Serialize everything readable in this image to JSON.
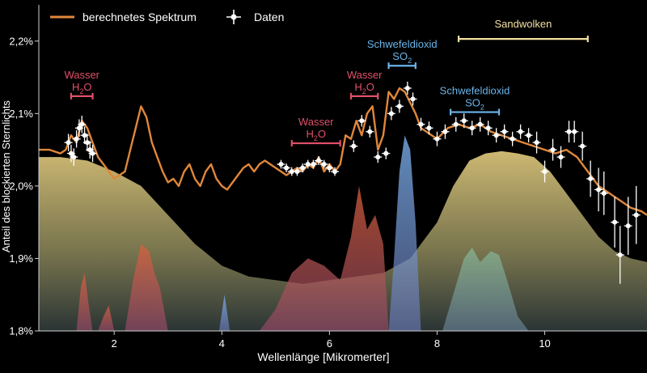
{
  "chart_data": {
    "type": "line",
    "xlabel": "Wellenlänge [Mikromerter]",
    "ylabel": "Anteil des blockierten Sternlichts",
    "xlim": [
      0.6,
      11.9
    ],
    "ylim": [
      1.8,
      2.25
    ],
    "x_ticks": [
      2,
      4,
      6,
      8,
      10
    ],
    "y_ticks": [
      {
        "value": 1.8,
        "label": "1,8%"
      },
      {
        "value": 1.9,
        "label": "1,9%"
      },
      {
        "value": 2.0,
        "label": "2,0%"
      },
      {
        "value": 2.1,
        "label": "2,1%"
      },
      {
        "value": 2.2,
        "label": "2,2%"
      }
    ],
    "legend": {
      "position": "top-left",
      "entries": [
        {
          "label": "berechnetes Spektrum",
          "kind": "line",
          "color": "#e0873a"
        },
        {
          "label": "Daten",
          "kind": "marker",
          "color": "#ffffff"
        }
      ]
    },
    "colors": {
      "model_line": "#e0873a",
      "data_points": "#ffffff",
      "water": "#e0506a",
      "so2": "#6ab4ea",
      "sand": "#f2e0a0",
      "cloud_fill": "#cbb66c",
      "water_fill": "#d2603e",
      "so2_fill": "#6c9ad8",
      "sand_fill": "#7aaa8e"
    },
    "annotations": [
      {
        "id": "water1",
        "label": "Wasser",
        "formula": "H",
        "sub": "2",
        "tail": "O",
        "x_range": [
          1.2,
          1.6
        ],
        "y": 2.124,
        "color": "#e0506a"
      },
      {
        "id": "water2",
        "label": "Wasser",
        "formula": "H",
        "sub": "2",
        "tail": "O",
        "x_range": [
          5.3,
          6.2
        ],
        "y": 2.059,
        "color": "#e0506a"
      },
      {
        "id": "water3",
        "label": "Wasser",
        "formula": "H",
        "sub": "2",
        "tail": "O",
        "x_range": [
          6.4,
          6.9
        ],
        "y": 2.124,
        "color": "#e0506a"
      },
      {
        "id": "so2a",
        "label": "Schwefeldioxid",
        "formula": "SO",
        "sub": "2",
        "tail": "",
        "x_range": [
          7.1,
          7.6
        ],
        "y": 2.166,
        "color": "#6ab4ea"
      },
      {
        "id": "so2b",
        "label": "Schwefeldioxid",
        "formula": "SO",
        "sub": "2",
        "tail": "",
        "x_range": [
          8.25,
          9.15
        ],
        "y": 2.102,
        "color": "#6ab4ea"
      },
      {
        "id": "sand",
        "label": "Sandwolken",
        "formula": "",
        "sub": "",
        "tail": "",
        "x_range": [
          8.4,
          10.8
        ],
        "y": 2.203,
        "color": "#f2e0a0"
      }
    ],
    "model_spectrum": {
      "name": "berechnetes Spektrum",
      "x": [
        0.6,
        0.8,
        1.0,
        1.1,
        1.2,
        1.3,
        1.4,
        1.5,
        1.6,
        1.7,
        1.8,
        1.9,
        2.0,
        2.1,
        2.2,
        2.3,
        2.4,
        2.5,
        2.6,
        2.7,
        2.8,
        2.9,
        3.0,
        3.1,
        3.2,
        3.3,
        3.4,
        3.5,
        3.6,
        3.7,
        3.8,
        3.9,
        4.0,
        4.1,
        4.2,
        4.3,
        4.4,
        4.5,
        4.6,
        4.7,
        4.8,
        4.9,
        5.0,
        5.1,
        5.2,
        5.3,
        5.4,
        5.5,
        5.6,
        5.7,
        5.8,
        5.9,
        6.0,
        6.1,
        6.2,
        6.3,
        6.4,
        6.5,
        6.6,
        6.7,
        6.8,
        6.9,
        7.0,
        7.1,
        7.2,
        7.3,
        7.4,
        7.5,
        7.6,
        7.7,
        7.8,
        7.9,
        8.0,
        8.2,
        8.4,
        8.6,
        8.8,
        9.0,
        9.2,
        9.4,
        9.6,
        9.8,
        10.0,
        10.2,
        10.4,
        10.6,
        10.8,
        11.0,
        11.2,
        11.4,
        11.6,
        11.8,
        11.9
      ],
      "y": [
        2.05,
        2.05,
        2.045,
        2.05,
        2.07,
        2.06,
        2.09,
        2.08,
        2.06,
        2.04,
        2.03,
        2.02,
        2.01,
        2.015,
        2.02,
        2.05,
        2.08,
        2.11,
        2.095,
        2.06,
        2.04,
        2.02,
        2.005,
        2.01,
        2.0,
        2.02,
        2.03,
        2.01,
        2.0,
        2.02,
        2.03,
        2.01,
        2.0,
        1.995,
        2.005,
        2.015,
        2.025,
        2.03,
        2.02,
        2.03,
        2.035,
        2.03,
        2.025,
        2.02,
        2.015,
        2.02,
        2.025,
        2.02,
        2.03,
        2.025,
        2.04,
        2.02,
        2.03,
        2.02,
        2.03,
        2.07,
        2.065,
        2.09,
        2.07,
        2.1,
        2.11,
        2.05,
        2.07,
        2.13,
        2.12,
        2.135,
        2.13,
        2.115,
        2.1,
        2.08,
        2.075,
        2.07,
        2.065,
        2.08,
        2.085,
        2.08,
        2.085,
        2.075,
        2.07,
        2.065,
        2.06,
        2.055,
        2.05,
        2.045,
        2.05,
        2.04,
        2.02,
        2.0,
        1.99,
        1.98,
        1.97,
        1.965,
        1.96
      ]
    },
    "data_series": {
      "name": "Daten",
      "points": [
        {
          "x": 1.15,
          "y": 2.06,
          "err": 0.012
        },
        {
          "x": 1.2,
          "y": 2.045,
          "err": 0.012
        },
        {
          "x": 1.25,
          "y": 2.04,
          "err": 0.012
        },
        {
          "x": 1.3,
          "y": 2.065,
          "err": 0.012
        },
        {
          "x": 1.35,
          "y": 2.08,
          "err": 0.012
        },
        {
          "x": 1.4,
          "y": 2.085,
          "err": 0.012
        },
        {
          "x": 1.45,
          "y": 2.07,
          "err": 0.012
        },
        {
          "x": 1.5,
          "y": 2.06,
          "err": 0.012
        },
        {
          "x": 1.55,
          "y": 2.05,
          "err": 0.012
        },
        {
          "x": 1.6,
          "y": 2.045,
          "err": 0.012
        },
        {
          "x": 5.1,
          "y": 2.03,
          "err": 0.006
        },
        {
          "x": 5.2,
          "y": 2.025,
          "err": 0.006
        },
        {
          "x": 5.3,
          "y": 2.02,
          "err": 0.006
        },
        {
          "x": 5.4,
          "y": 2.02,
          "err": 0.006
        },
        {
          "x": 5.5,
          "y": 2.025,
          "err": 0.006
        },
        {
          "x": 5.6,
          "y": 2.03,
          "err": 0.006
        },
        {
          "x": 5.7,
          "y": 2.03,
          "err": 0.006
        },
        {
          "x": 5.8,
          "y": 2.035,
          "err": 0.006
        },
        {
          "x": 5.9,
          "y": 2.03,
          "err": 0.006
        },
        {
          "x": 6.0,
          "y": 2.025,
          "err": 0.006
        },
        {
          "x": 6.1,
          "y": 2.02,
          "err": 0.006
        },
        {
          "x": 6.45,
          "y": 2.055,
          "err": 0.008
        },
        {
          "x": 6.6,
          "y": 2.09,
          "err": 0.008
        },
        {
          "x": 6.75,
          "y": 2.075,
          "err": 0.008
        },
        {
          "x": 6.9,
          "y": 2.04,
          "err": 0.008
        },
        {
          "x": 7.05,
          "y": 2.045,
          "err": 0.008
        },
        {
          "x": 7.15,
          "y": 2.1,
          "err": 0.009
        },
        {
          "x": 7.3,
          "y": 2.11,
          "err": 0.009
        },
        {
          "x": 7.45,
          "y": 2.135,
          "err": 0.009
        },
        {
          "x": 7.55,
          "y": 2.12,
          "err": 0.009
        },
        {
          "x": 7.7,
          "y": 2.085,
          "err": 0.009
        },
        {
          "x": 7.85,
          "y": 2.08,
          "err": 0.009
        },
        {
          "x": 8.0,
          "y": 2.065,
          "err": 0.01
        },
        {
          "x": 8.15,
          "y": 2.075,
          "err": 0.01
        },
        {
          "x": 8.35,
          "y": 2.085,
          "err": 0.01
        },
        {
          "x": 8.5,
          "y": 2.09,
          "err": 0.01
        },
        {
          "x": 8.65,
          "y": 2.08,
          "err": 0.01
        },
        {
          "x": 8.8,
          "y": 2.085,
          "err": 0.01
        },
        {
          "x": 8.95,
          "y": 2.08,
          "err": 0.01
        },
        {
          "x": 9.1,
          "y": 2.07,
          "err": 0.01
        },
        {
          "x": 9.25,
          "y": 2.075,
          "err": 0.01
        },
        {
          "x": 9.4,
          "y": 2.065,
          "err": 0.01
        },
        {
          "x": 9.55,
          "y": 2.075,
          "err": 0.01
        },
        {
          "x": 9.7,
          "y": 2.07,
          "err": 0.01
        },
        {
          "x": 9.85,
          "y": 2.06,
          "err": 0.015
        },
        {
          "x": 10.0,
          "y": 2.02,
          "err": 0.015
        },
        {
          "x": 10.15,
          "y": 2.05,
          "err": 0.015
        },
        {
          "x": 10.3,
          "y": 2.04,
          "err": 0.015
        },
        {
          "x": 10.45,
          "y": 2.075,
          "err": 0.015
        },
        {
          "x": 10.55,
          "y": 2.075,
          "err": 0.015
        },
        {
          "x": 10.7,
          "y": 2.055,
          "err": 0.02
        },
        {
          "x": 10.85,
          "y": 2.01,
          "err": 0.025
        },
        {
          "x": 11.0,
          "y": 1.995,
          "err": 0.03
        },
        {
          "x": 11.1,
          "y": 1.99,
          "err": 0.03
        },
        {
          "x": 11.3,
          "y": 1.95,
          "err": 0.035
        },
        {
          "x": 11.4,
          "y": 1.905,
          "err": 0.04
        },
        {
          "x": 11.55,
          "y": 1.945,
          "err": 0.04
        },
        {
          "x": 11.7,
          "y": 1.96,
          "err": 0.04
        }
      ]
    },
    "features": {
      "cloud": {
        "x": [
          0.6,
          1.0,
          1.5,
          2.0,
          2.5,
          3.0,
          3.5,
          4.0,
          4.5,
          5.0,
          5.5,
          6.0,
          6.5,
          7.0,
          7.5,
          8.0,
          8.3,
          8.6,
          8.9,
          9.2,
          9.5,
          9.8,
          10.1,
          10.4,
          10.7,
          11.0,
          11.3,
          11.6,
          11.9
        ],
        "y": [
          2.04,
          2.04,
          2.035,
          2.02,
          2.0,
          1.96,
          1.92,
          1.89,
          1.875,
          1.87,
          1.865,
          1.87,
          1.875,
          1.88,
          1.9,
          1.95,
          2.0,
          2.035,
          2.045,
          2.048,
          2.045,
          2.04,
          2.02,
          1.99,
          1.96,
          1.93,
          1.91,
          1.9,
          1.895
        ]
      },
      "water_bands": [
        {
          "x": [
            1.3,
            1.38,
            1.45,
            1.52,
            1.6
          ],
          "y": [
            1.8,
            1.86,
            1.88,
            1.84,
            1.8
          ]
        },
        {
          "x": [
            1.7,
            1.8,
            1.9,
            2.0
          ],
          "y": [
            1.8,
            1.82,
            1.835,
            1.8
          ]
        },
        {
          "x": [
            2.2,
            2.35,
            2.5,
            2.65,
            2.75,
            2.85,
            3.0
          ],
          "y": [
            1.8,
            1.87,
            1.92,
            1.91,
            1.88,
            1.86,
            1.8
          ]
        },
        {
          "x": [
            4.7,
            5.0,
            5.3,
            5.6,
            5.9,
            6.2,
            6.4,
            6.55,
            6.7,
            6.85,
            7.0,
            7.1
          ],
          "y": [
            1.8,
            1.83,
            1.88,
            1.9,
            1.89,
            1.87,
            1.93,
            2.0,
            1.94,
            1.96,
            1.92,
            1.8
          ]
        }
      ],
      "so2_bands": [
        {
          "x": [
            3.95,
            4.05,
            4.15
          ],
          "y": [
            1.8,
            1.85,
            1.8
          ]
        },
        {
          "x": [
            7.1,
            7.2,
            7.3,
            7.4,
            7.5,
            7.6,
            7.7
          ],
          "y": [
            1.8,
            1.9,
            2.02,
            2.07,
            2.05,
            1.95,
            1.8
          ]
        },
        {
          "x": [
            8.1,
            8.3,
            8.5,
            8.65,
            8.8,
            9.0,
            9.15,
            9.3,
            9.5,
            9.7
          ],
          "y": [
            1.8,
            1.85,
            1.9,
            1.915,
            1.895,
            1.91,
            1.905,
            1.87,
            1.82,
            1.8
          ]
        }
      ]
    }
  }
}
